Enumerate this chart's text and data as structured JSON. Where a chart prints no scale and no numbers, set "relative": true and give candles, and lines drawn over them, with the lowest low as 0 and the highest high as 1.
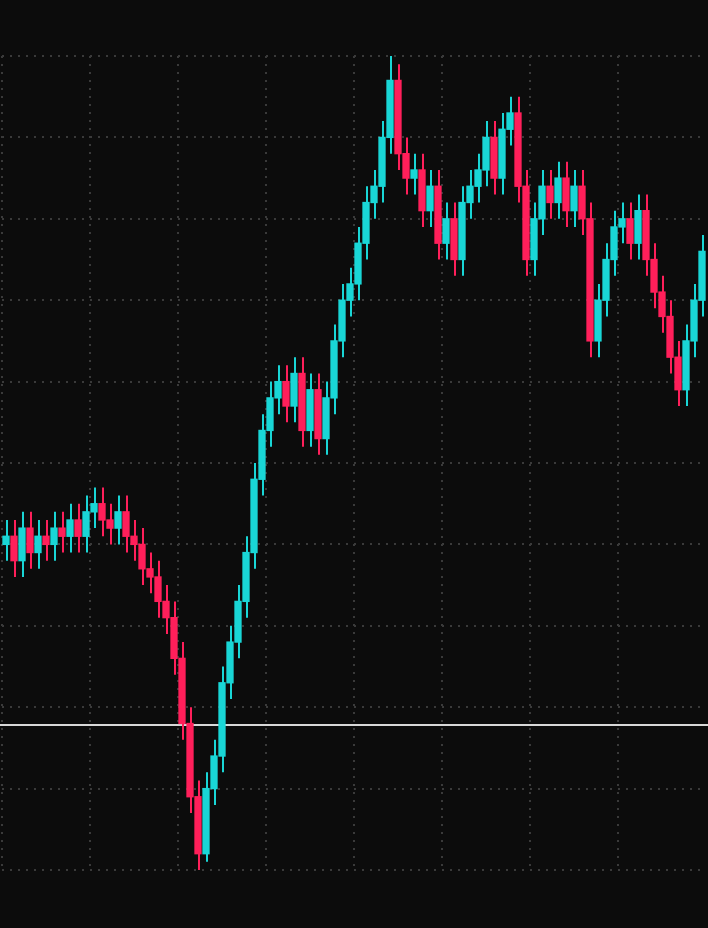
{
  "chart_data": {
    "type": "candlestick",
    "relative": true,
    "grid": true,
    "categories": [
      null,
      null,
      null,
      null,
      null,
      null,
      null,
      null,
      null,
      null,
      null,
      null,
      null,
      null,
      null,
      null,
      null,
      null,
      null,
      null,
      null,
      null,
      null,
      null,
      null,
      null,
      null,
      null,
      null,
      null,
      null,
      null,
      null,
      null,
      null,
      null,
      null,
      null,
      null,
      null,
      null,
      null,
      null,
      null,
      null,
      null,
      null,
      null,
      null,
      null,
      null,
      null,
      null,
      null,
      null,
      null,
      null,
      null,
      null,
      null,
      null,
      null,
      null,
      null,
      null,
      null,
      null,
      null,
      null,
      null,
      null,
      null,
      null,
      null,
      null,
      null,
      null,
      null,
      null,
      null,
      null,
      null,
      null,
      null,
      null,
      null,
      null,
      null
    ],
    "ohlc": [
      [
        0.4,
        0.43,
        0.38,
        0.41
      ],
      [
        0.41,
        0.43,
        0.36,
        0.38
      ],
      [
        0.38,
        0.44,
        0.36,
        0.42
      ],
      [
        0.42,
        0.44,
        0.37,
        0.39
      ],
      [
        0.39,
        0.43,
        0.37,
        0.41
      ],
      [
        0.41,
        0.43,
        0.38,
        0.4
      ],
      [
        0.4,
        0.44,
        0.38,
        0.42
      ],
      [
        0.42,
        0.44,
        0.39,
        0.41
      ],
      [
        0.41,
        0.45,
        0.39,
        0.43
      ],
      [
        0.43,
        0.45,
        0.39,
        0.41
      ],
      [
        0.41,
        0.46,
        0.39,
        0.44
      ],
      [
        0.44,
        0.47,
        0.42,
        0.45
      ],
      [
        0.45,
        0.47,
        0.41,
        0.43
      ],
      [
        0.43,
        0.45,
        0.4,
        0.42
      ],
      [
        0.42,
        0.46,
        0.4,
        0.44
      ],
      [
        0.44,
        0.46,
        0.39,
        0.41
      ],
      [
        0.41,
        0.43,
        0.38,
        0.4
      ],
      [
        0.4,
        0.42,
        0.35,
        0.37
      ],
      [
        0.37,
        0.39,
        0.34,
        0.36
      ],
      [
        0.36,
        0.38,
        0.31,
        0.33
      ],
      [
        0.33,
        0.35,
        0.29,
        0.31
      ],
      [
        0.31,
        0.33,
        0.24,
        0.26
      ],
      [
        0.26,
        0.28,
        0.16,
        0.18
      ],
      [
        0.18,
        0.2,
        0.07,
        0.09
      ],
      [
        0.09,
        0.11,
        0.0,
        0.02
      ],
      [
        0.02,
        0.12,
        0.01,
        0.1
      ],
      [
        0.1,
        0.16,
        0.08,
        0.14
      ],
      [
        0.14,
        0.25,
        0.12,
        0.23
      ],
      [
        0.23,
        0.3,
        0.21,
        0.28
      ],
      [
        0.28,
        0.35,
        0.26,
        0.33
      ],
      [
        0.33,
        0.41,
        0.31,
        0.39
      ],
      [
        0.39,
        0.5,
        0.37,
        0.48
      ],
      [
        0.48,
        0.56,
        0.46,
        0.54
      ],
      [
        0.54,
        0.6,
        0.52,
        0.58
      ],
      [
        0.58,
        0.62,
        0.56,
        0.6
      ],
      [
        0.6,
        0.62,
        0.55,
        0.57
      ],
      [
        0.57,
        0.63,
        0.55,
        0.61
      ],
      [
        0.61,
        0.63,
        0.52,
        0.54
      ],
      [
        0.54,
        0.61,
        0.52,
        0.59
      ],
      [
        0.59,
        0.61,
        0.51,
        0.53
      ],
      [
        0.53,
        0.6,
        0.51,
        0.58
      ],
      [
        0.58,
        0.67,
        0.56,
        0.65
      ],
      [
        0.65,
        0.72,
        0.63,
        0.7
      ],
      [
        0.7,
        0.74,
        0.68,
        0.72
      ],
      [
        0.72,
        0.79,
        0.7,
        0.77
      ],
      [
        0.77,
        0.84,
        0.75,
        0.82
      ],
      [
        0.82,
        0.86,
        0.8,
        0.84
      ],
      [
        0.84,
        0.92,
        0.82,
        0.9
      ],
      [
        0.9,
        1.0,
        0.88,
        0.97
      ],
      [
        0.97,
        0.99,
        0.86,
        0.88
      ],
      [
        0.88,
        0.9,
        0.83,
        0.85
      ],
      [
        0.85,
        0.88,
        0.83,
        0.86
      ],
      [
        0.86,
        0.88,
        0.79,
        0.81
      ],
      [
        0.81,
        0.86,
        0.79,
        0.84
      ],
      [
        0.84,
        0.86,
        0.75,
        0.77
      ],
      [
        0.77,
        0.82,
        0.75,
        0.8
      ],
      [
        0.8,
        0.82,
        0.73,
        0.75
      ],
      [
        0.75,
        0.84,
        0.73,
        0.82
      ],
      [
        0.82,
        0.86,
        0.8,
        0.84
      ],
      [
        0.84,
        0.88,
        0.82,
        0.86
      ],
      [
        0.86,
        0.92,
        0.84,
        0.9
      ],
      [
        0.9,
        0.92,
        0.83,
        0.85
      ],
      [
        0.85,
        0.93,
        0.83,
        0.91
      ],
      [
        0.91,
        0.95,
        0.89,
        0.93
      ],
      [
        0.93,
        0.95,
        0.82,
        0.84
      ],
      [
        0.84,
        0.86,
        0.73,
        0.75
      ],
      [
        0.75,
        0.82,
        0.73,
        0.8
      ],
      [
        0.8,
        0.86,
        0.78,
        0.84
      ],
      [
        0.84,
        0.86,
        0.8,
        0.82
      ],
      [
        0.82,
        0.87,
        0.8,
        0.85
      ],
      [
        0.85,
        0.87,
        0.79,
        0.81
      ],
      [
        0.81,
        0.86,
        0.79,
        0.84
      ],
      [
        0.84,
        0.86,
        0.78,
        0.8
      ],
      [
        0.8,
        0.82,
        0.63,
        0.65
      ],
      [
        0.65,
        0.72,
        0.63,
        0.7
      ],
      [
        0.7,
        0.77,
        0.68,
        0.75
      ],
      [
        0.75,
        0.81,
        0.73,
        0.79
      ],
      [
        0.79,
        0.82,
        0.77,
        0.8
      ],
      [
        0.8,
        0.82,
        0.75,
        0.77
      ],
      [
        0.77,
        0.83,
        0.75,
        0.81
      ],
      [
        0.81,
        0.83,
        0.73,
        0.75
      ],
      [
        0.75,
        0.77,
        0.69,
        0.71
      ],
      [
        0.71,
        0.73,
        0.66,
        0.68
      ],
      [
        0.68,
        0.7,
        0.61,
        0.63
      ],
      [
        0.63,
        0.65,
        0.57,
        0.59
      ],
      [
        0.59,
        0.67,
        0.57,
        0.65
      ],
      [
        0.65,
        0.72,
        0.63,
        0.7
      ],
      [
        0.7,
        0.78,
        0.68,
        0.76
      ]
    ],
    "ref_lines": [
      {
        "axis": "y",
        "value": 0.18,
        "color": "#d8d8d8"
      }
    ]
  }
}
